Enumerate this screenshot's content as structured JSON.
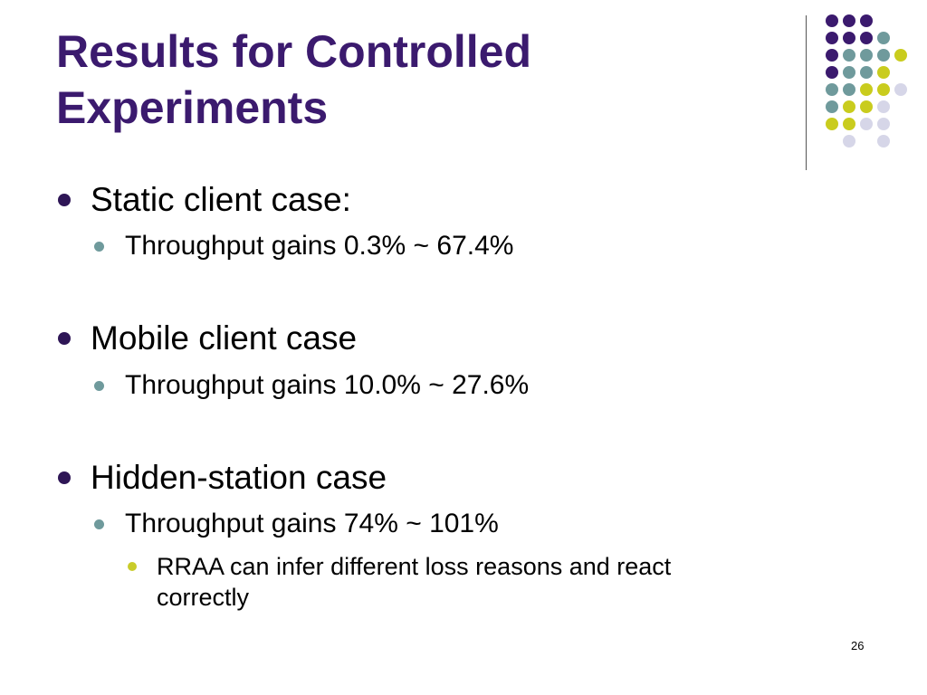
{
  "slide": {
    "title_line1": "Results for Controlled",
    "title_line2": "Experiments",
    "page_number": "26"
  },
  "bullets": [
    {
      "text": "Static client case:",
      "sub": [
        {
          "text": "Throughput gains 0.3% ~ 67.4%"
        }
      ]
    },
    {
      "text": "Mobile client case",
      "sub": [
        {
          "text": "Throughput gains 10.0% ~ 27.6%"
        }
      ]
    },
    {
      "text": "Hidden-station case",
      "sub": [
        {
          "text": "Throughput gains 74% ~ 101%",
          "sub": [
            {
              "text_line1": "RRAA can infer different loss reasons and react",
              "text_line2": "correctly"
            }
          ]
        }
      ]
    }
  ],
  "colors": {
    "title": "#3b1a6e",
    "dot_purple": "#3b1a6e",
    "dot_teal": "#6f9a9c",
    "dot_yellow": "#c9cc1e",
    "dot_lavender": "#d6d6e8"
  }
}
